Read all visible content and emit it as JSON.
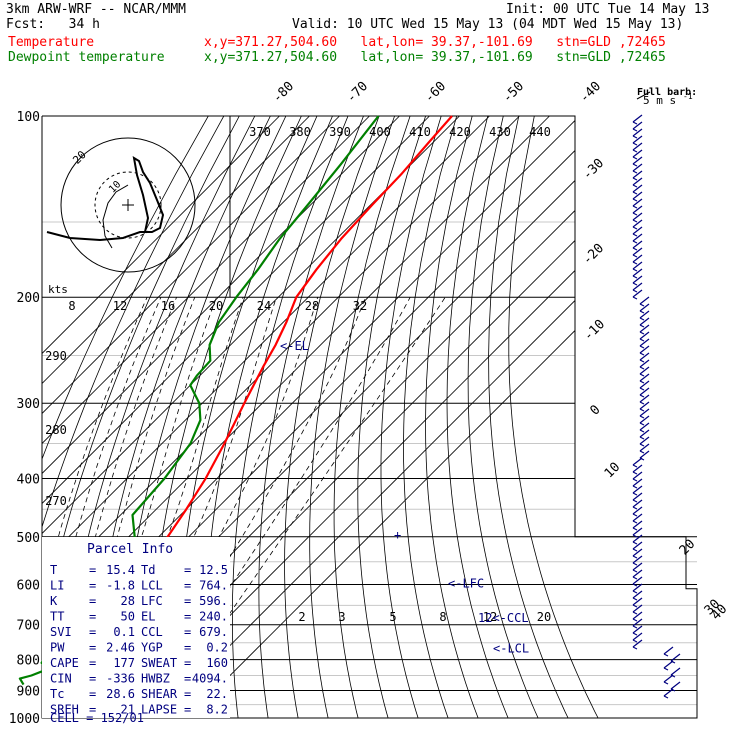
{
  "header": {
    "model": "3km ARW-WRF -- NCAR/MMM",
    "init": "Init: 00 UTC Tue 14 May 13",
    "fcst": "Fcst:   34 h",
    "valid": "Valid: 10 UTC Wed 15 May 13 (04 MDT Wed 15 May 13)",
    "temp_label": "Temperature",
    "temp_info": "x,y=371.27,504.60   lat,lon= 39.37,-101.69   stn=GLD ,72465",
    "dew_label": "Dewpoint temperature",
    "dew_info": "x,y=371.27,504.60   lat,lon= 39.37,-101.69   stn=GLD ,72465"
  },
  "colors": {
    "temperature": "#ff0000",
    "dewpoint": "#008000",
    "annotation": "#000080",
    "axes": "#000000",
    "isobar_grid": "#c8c8c8"
  },
  "barb_legend": {
    "title": "Full barb:",
    "value": "5 m s",
    "exp": "-1"
  },
  "parcel_info": {
    "title": "Parcel Info",
    "rows": [
      {
        "k1": "T",
        "v1": "15.4",
        "k2": "Td",
        "v2": "12.5"
      },
      {
        "k1": "LI",
        "v1": "-1.8",
        "k2": "LCL",
        "v2": "764."
      },
      {
        "k1": "K",
        "v1": "28",
        "k2": "LFC",
        "v2": "596."
      },
      {
        "k1": "TT",
        "v1": "50",
        "k2": "EL",
        "v2": "240."
      },
      {
        "k1": "SVI",
        "v1": "0.1",
        "k2": "CCL",
        "v2": "679."
      },
      {
        "k1": "PW",
        "v1": "2.46",
        "k2": "YGP",
        "v2": "0.2"
      },
      {
        "k1": "CAPE",
        "v1": "177",
        "k2": "SWEAT",
        "v2": "160"
      },
      {
        "k1": "CIN",
        "v1": "-336",
        "k2": "HWBZ",
        "v2": "4094."
      },
      {
        "k1": "Tc",
        "v1": "28.6",
        "k2": "SHEAR",
        "v2": "22."
      },
      {
        "k1": "SREH",
        "v1": "21",
        "k2": "LAPSE",
        "v2": "8.2"
      }
    ],
    "cell": "CELL = 152/01"
  },
  "chart_data": {
    "type": "line",
    "chart_kind": "skew-T log-p sounding",
    "y_axis": {
      "scale": "log",
      "unit": "hPa",
      "range": [
        1000,
        100
      ],
      "ticks": [
        100,
        200,
        300,
        400,
        500,
        600,
        700,
        800,
        900,
        1000
      ]
    },
    "isotherm_labels": [
      "-80",
      "-70",
      "-60",
      "-50",
      "-40",
      "-30",
      "-20",
      "-10",
      "0",
      "10",
      "20",
      "30",
      "40"
    ],
    "theta_labels": [
      "370",
      "380",
      "390",
      "400",
      "410",
      "420",
      "430",
      "440"
    ],
    "mixing_ratio_labels_mid": [
      "2",
      "3",
      "5",
      "8",
      "12",
      "20"
    ],
    "mixing_ratio_labels_top": [
      "8",
      "12",
      "16",
      "20",
      "24",
      "28",
      "32"
    ],
    "theta_labels_left": [
      "290",
      "280",
      "270"
    ],
    "units_label": "kts",
    "hodograph_labels": {
      "ring": "20",
      "inner": "10"
    },
    "series": [
      {
        "name": "Temperature",
        "values": [
          [
            880,
            -4.6
          ],
          [
            860,
            -4.2
          ],
          [
            830,
            -3.6
          ],
          [
            800,
            -3.8
          ],
          [
            780,
            -4.3
          ],
          [
            750,
            -4.0
          ],
          [
            700,
            -5.5
          ],
          [
            650,
            -8.0
          ],
          [
            600,
            -11.5
          ],
          [
            550,
            -13.5
          ],
          [
            500,
            -17.0
          ],
          [
            450,
            -20.0
          ],
          [
            400,
            -23.8
          ],
          [
            350,
            -29.2
          ],
          [
            300,
            -36.0
          ],
          [
            260,
            -42.0
          ],
          [
            240,
            -45.0
          ],
          [
            220,
            -49.0
          ],
          [
            200,
            -54.0
          ],
          [
            180,
            -56.5
          ],
          [
            160,
            -58.5
          ],
          [
            140,
            -59.5
          ],
          [
            125,
            -60.0
          ],
          [
            110,
            -61.5
          ],
          [
            100,
            -62.5
          ]
        ]
      },
      {
        "name": "Dewpoint temperature",
        "values": [
          [
            880,
            -15.8
          ],
          [
            860,
            -19.0
          ],
          [
            850,
            -16.2
          ],
          [
            830,
            -13.0
          ],
          [
            810,
            -17.0
          ],
          [
            780,
            -18.2
          ],
          [
            750,
            -18.5
          ],
          [
            700,
            -15.0
          ],
          [
            650,
            -15.0
          ],
          [
            600,
            -16.5
          ],
          [
            550,
            -22.0
          ],
          [
            500,
            -28.0
          ],
          [
            460,
            -36.0
          ],
          [
            400,
            -37.5
          ],
          [
            350,
            -40.5
          ],
          [
            320,
            -45.0
          ],
          [
            300,
            -51.0
          ],
          [
            280,
            -60.0
          ],
          [
            270,
            -61.0
          ],
          [
            255,
            -61.5
          ],
          [
            240,
            -67.0
          ],
          [
            220,
            -71.5
          ],
          [
            200,
            -74.0
          ],
          [
            180,
            -76.0
          ],
          [
            160,
            -79.0
          ],
          [
            140,
            -81.0
          ],
          [
            120,
            -83.5
          ],
          [
            100,
            -87.0
          ]
        ]
      }
    ],
    "annotations": [
      {
        "label": "<-EL",
        "pressure": 240
      },
      {
        "label": "<-LFC",
        "pressure": 596
      },
      {
        "label": "12<-CCL",
        "pressure": 679
      },
      {
        "label": "<-LCL",
        "pressure": 764
      }
    ]
  }
}
